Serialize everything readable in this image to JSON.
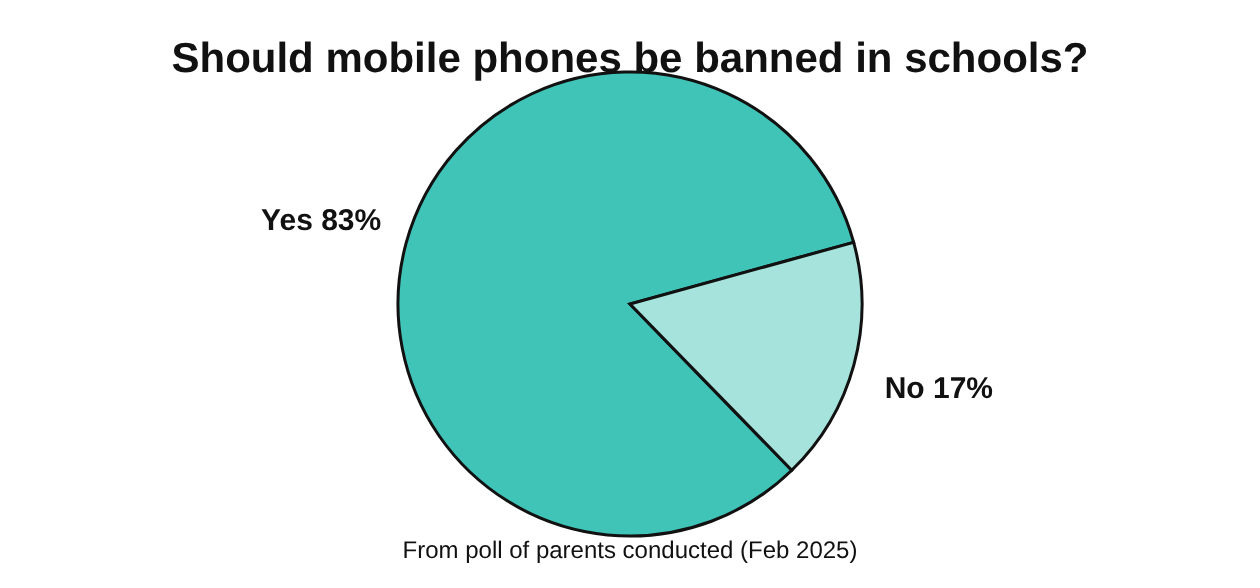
{
  "chart_data": {
    "type": "pie",
    "title": "Should mobile phones be banned in schools?",
    "categories": [
      "Yes",
      "No"
    ],
    "values": [
      83,
      17
    ],
    "colors": [
      "#40c4b8",
      "#a6e3dc"
    ],
    "value_labels": [
      "83%",
      "17%"
    ],
    "annotations": [
      "From poll of parents conducted (Feb 2025)"
    ]
  }
}
